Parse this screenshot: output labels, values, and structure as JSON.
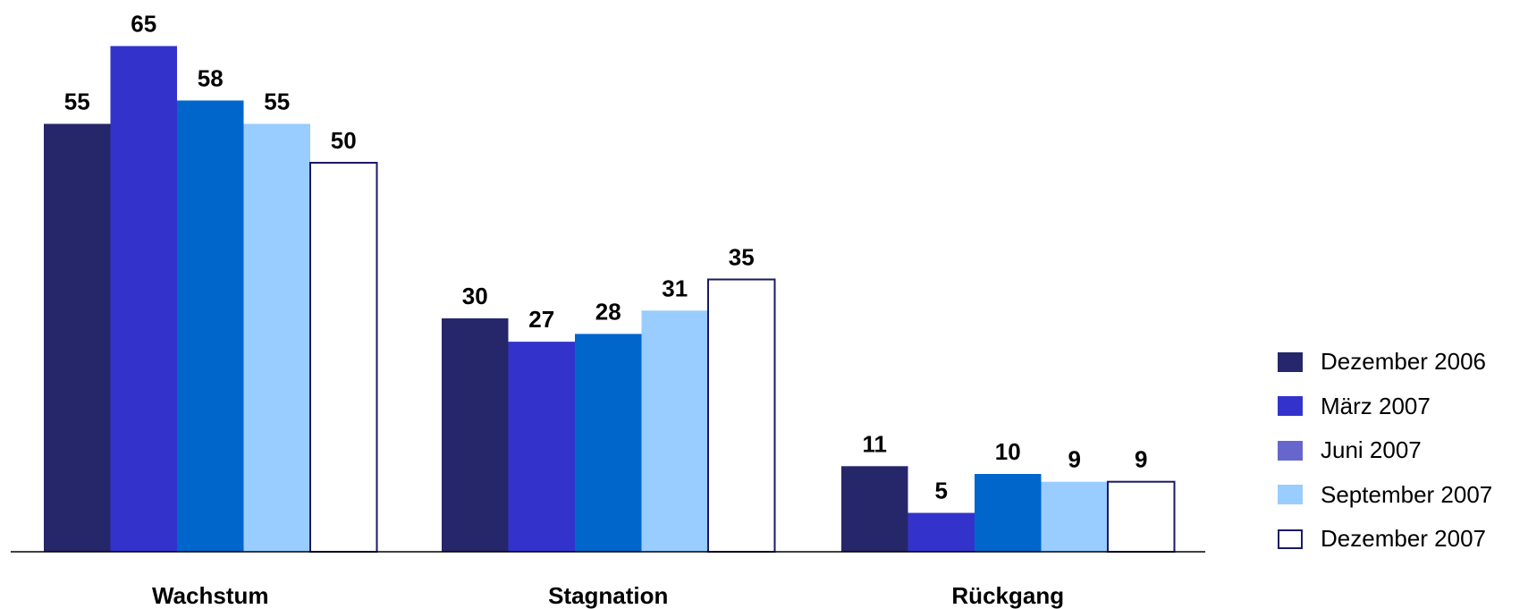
{
  "chart_data": {
    "type": "bar",
    "categories": [
      "Wachstum",
      "Stagnation",
      "Rückgang"
    ],
    "series": [
      {
        "name": "Dezember 2006",
        "values": [
          55,
          30,
          11
        ],
        "color": "#26266b",
        "border": "#26266b"
      },
      {
        "name": "März 2007",
        "values": [
          65,
          27,
          5
        ],
        "color": "#3333cc",
        "border": "#3333cc"
      },
      {
        "name": "Juni 2007",
        "values": [
          58,
          28,
          10
        ],
        "color": "#0066cc",
        "border": "#0066cc",
        "legend_color": "#6666cc"
      },
      {
        "name": "September 2007",
        "values": [
          55,
          31,
          9
        ],
        "color": "#99ccff",
        "border": "#99ccff"
      },
      {
        "name": "Dezember 2007",
        "values": [
          50,
          35,
          9
        ],
        "color": "#ffffff",
        "border": "#1a1a66"
      }
    ],
    "title": "",
    "xlabel": "",
    "ylabel": "",
    "ylim": [
      0,
      70
    ],
    "grid": false,
    "legend_position": "right"
  }
}
